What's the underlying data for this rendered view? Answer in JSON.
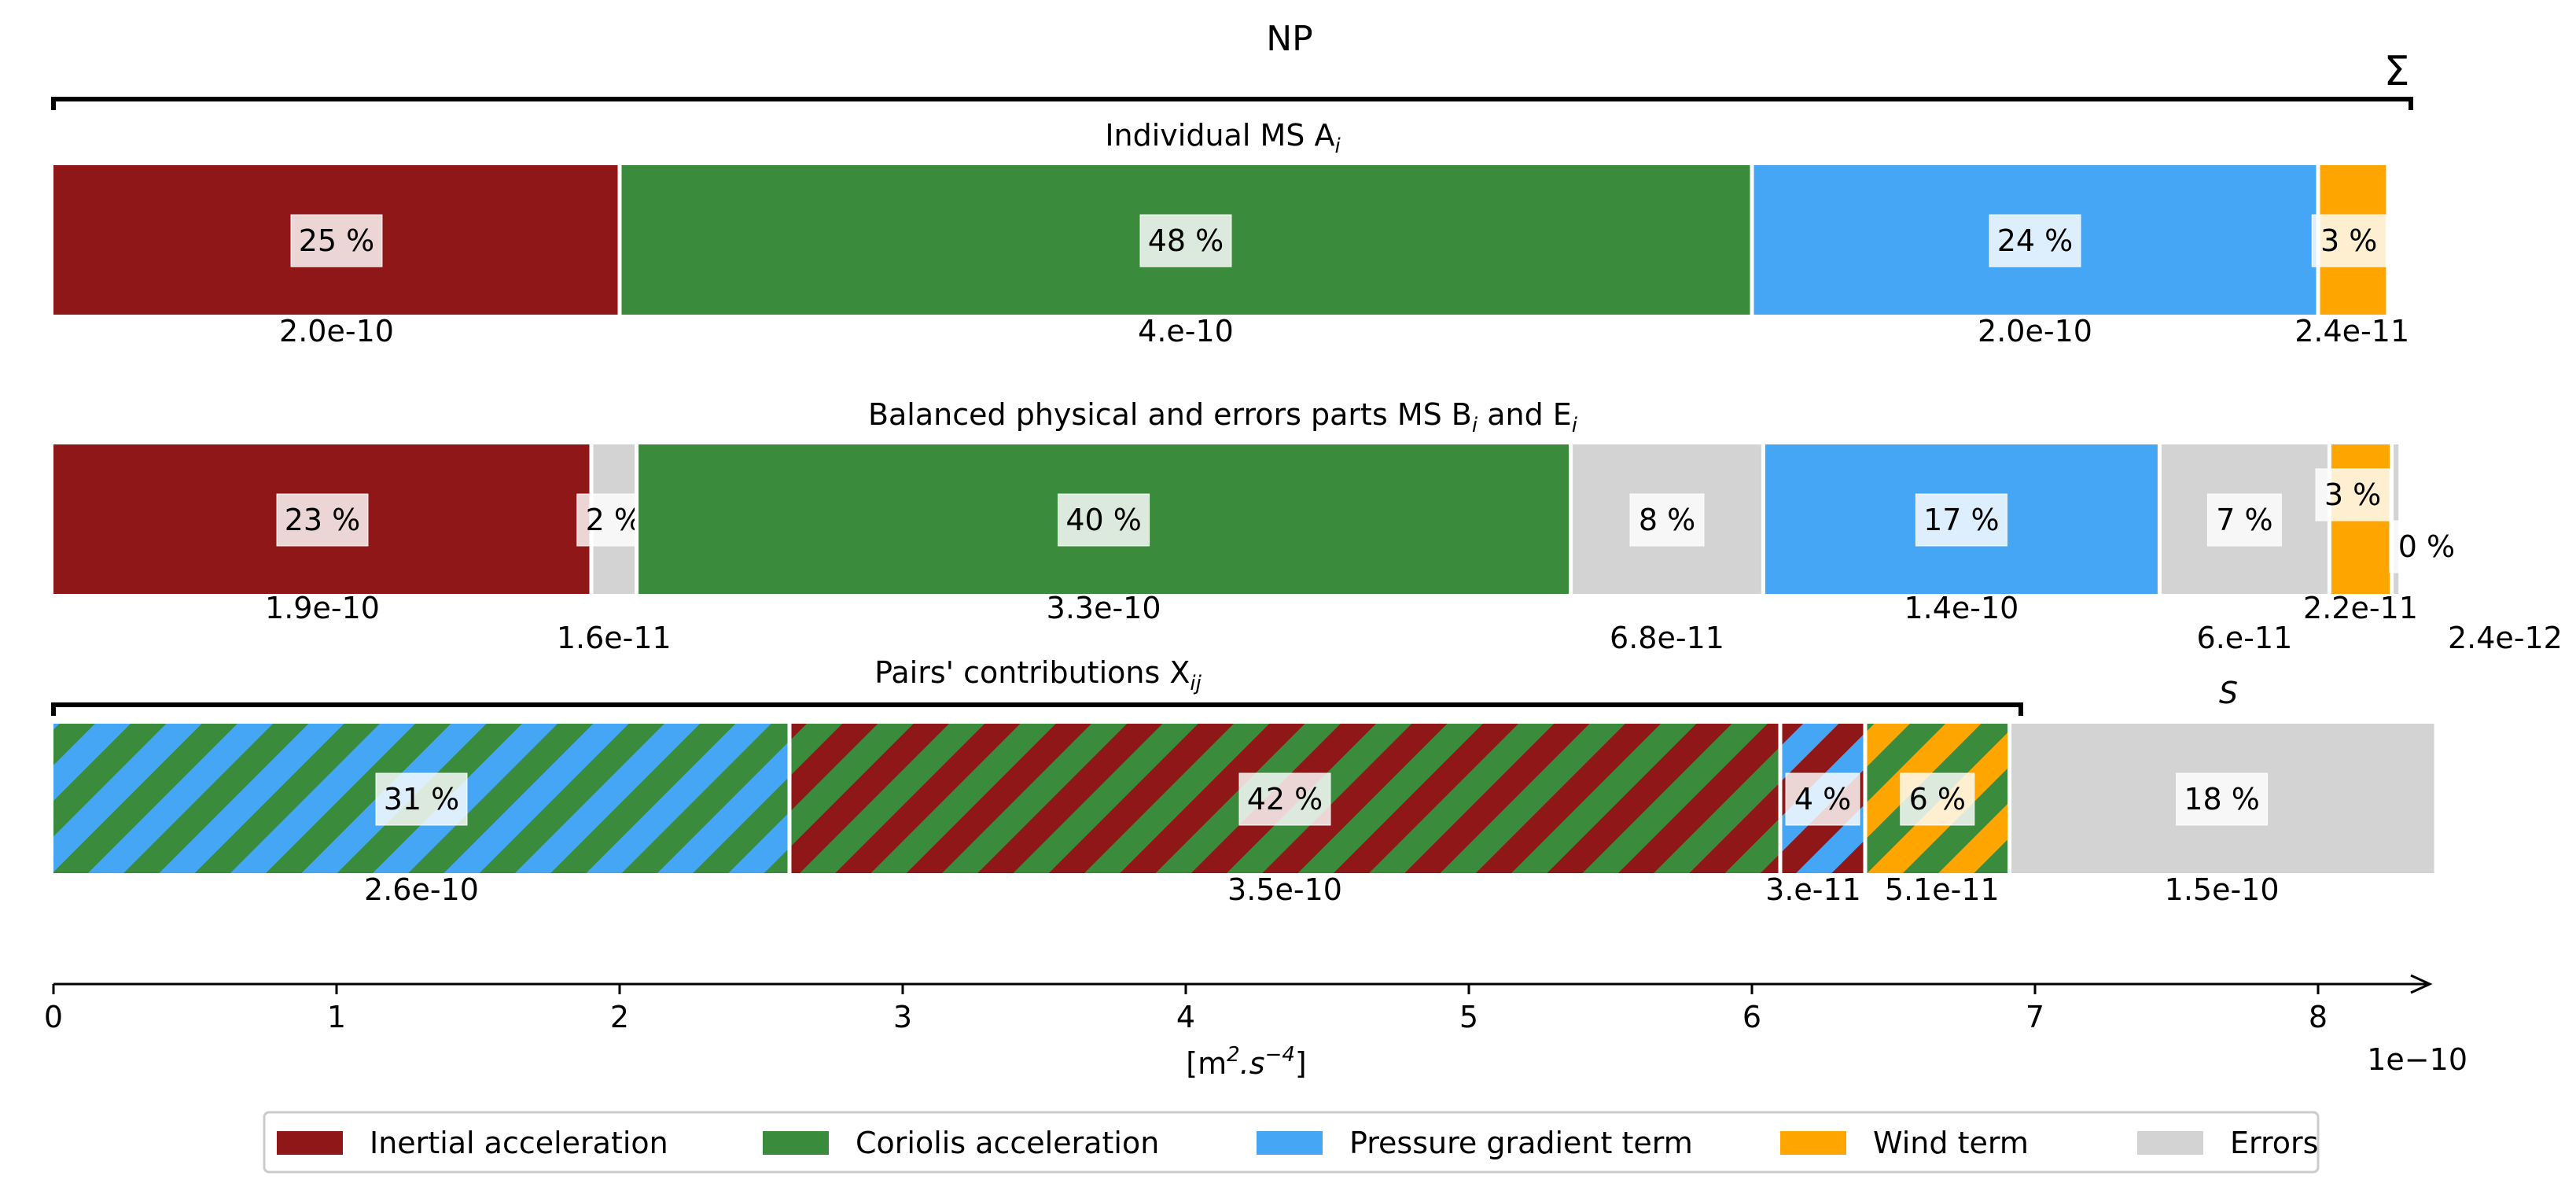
{
  "chart_data": {
    "type": "bar",
    "title": "NP",
    "sum_label": "Σ",
    "xlabel": "[m².s⁻⁴]",
    "xlabel_parts": [
      "[m",
      "2",
      ".s",
      "−4",
      "]"
    ],
    "xlim": [
      0,
      8.45e-10
    ],
    "x_ticks": [
      0,
      1e-10,
      2e-10,
      3e-10,
      4e-10,
      5e-10,
      6e-10,
      7e-10,
      8e-10
    ],
    "x_tick_labels": [
      "0",
      "1",
      "2",
      "3",
      "4",
      "5",
      "6",
      "7",
      "8"
    ],
    "offset_label": "1e−10",
    "grid": false,
    "legend_position": "bottom-center",
    "legend": [
      {
        "name": "Inertial acceleration",
        "color": "#8f1717"
      },
      {
        "name": "Coriolis acceleration",
        "color": "#3a8c3c"
      },
      {
        "name": "Pressure gradient term",
        "color": "#45a6f5"
      },
      {
        "name": "Wind term",
        "color": "#ffa500"
      },
      {
        "name": "Errors",
        "color": "#d3d3d3"
      }
    ],
    "rows": [
      {
        "title": "Individual MS A",
        "title_sub": "i",
        "segments": [
          {
            "name": "Inertial acceleration",
            "value": 2e-10,
            "pct": "25 %",
            "label": "2.0e-10",
            "colors": [
              "#8f1717"
            ]
          },
          {
            "name": "Coriolis acceleration",
            "value": 4e-10,
            "pct": "48 %",
            "label": "4.e-10",
            "colors": [
              "#3a8c3c"
            ]
          },
          {
            "name": "Pressure gradient term",
            "value": 2e-10,
            "pct": "24 %",
            "label": "2.0e-10",
            "colors": [
              "#45a6f5"
            ]
          },
          {
            "name": "Wind term",
            "value": 2.4e-11,
            "pct": "3 %",
            "label": "2.4e-11",
            "colors": [
              "#ffa500"
            ]
          }
        ]
      },
      {
        "title": "Balanced physical and errors parts MS B",
        "title_sub": "i",
        "title_mid": " and E",
        "title_sub2": "i",
        "segments": [
          {
            "name": "Inertial acceleration",
            "value": 1.9e-10,
            "pct": "23 %",
            "label": "1.9e-10",
            "colors": [
              "#8f1717"
            ]
          },
          {
            "name": "Errors",
            "value": 1.6e-11,
            "pct": "2 %",
            "label": "1.6e-11",
            "colors": [
              "#d3d3d3"
            ]
          },
          {
            "name": "Coriolis acceleration",
            "value": 3.3e-10,
            "pct": "40 %",
            "label": "3.3e-10",
            "colors": [
              "#3a8c3c"
            ]
          },
          {
            "name": "Errors",
            "value": 6.8e-11,
            "pct": "8 %",
            "label": "6.8e-11",
            "colors": [
              "#d3d3d3"
            ]
          },
          {
            "name": "Pressure gradient term",
            "value": 1.4e-10,
            "pct": "17 %",
            "label": "1.4e-10",
            "colors": [
              "#45a6f5"
            ]
          },
          {
            "name": "Errors",
            "value": 6e-11,
            "pct": "7 %",
            "label": "6.e-11",
            "colors": [
              "#d3d3d3"
            ]
          },
          {
            "name": "Wind term",
            "value": 2.2e-11,
            "pct": "3 %",
            "label": "2.2e-11",
            "colors": [
              "#ffa500"
            ]
          },
          {
            "name": "Errors",
            "value": 2.4e-12,
            "pct": "0 %",
            "label": "2.4e-12",
            "colors": [
              "#d3d3d3"
            ]
          }
        ]
      },
      {
        "title": "Pairs' contributions X",
        "title_sub": "ij",
        "s_label": "S",
        "segments": [
          {
            "name": "Coriolis acceleration / Pressure gradient term",
            "value": 2.6e-10,
            "pct": "31 %",
            "label": "2.6e-10",
            "colors": [
              "#3a8c3c",
              "#45a6f5"
            ]
          },
          {
            "name": "Inertial acceleration / Coriolis acceleration",
            "value": 3.5e-10,
            "pct": "42 %",
            "label": "3.5e-10",
            "colors": [
              "#8f1717",
              "#3a8c3c"
            ]
          },
          {
            "name": "Inertial acceleration / Pressure gradient term",
            "value": 3e-11,
            "pct": "4 %",
            "label": "3.e-11",
            "colors": [
              "#8f1717",
              "#45a6f5"
            ]
          },
          {
            "name": "Coriolis acceleration / Wind term",
            "value": 5.1e-11,
            "pct": "6 %",
            "label": "5.1e-11",
            "colors": [
              "#3a8c3c",
              "#ffa500"
            ]
          },
          {
            "name": "Errors",
            "value": 1.5e-10,
            "pct": "18 %",
            "label": "1.5e-10",
            "colors": [
              "#d3d3d3"
            ]
          }
        ]
      }
    ]
  }
}
